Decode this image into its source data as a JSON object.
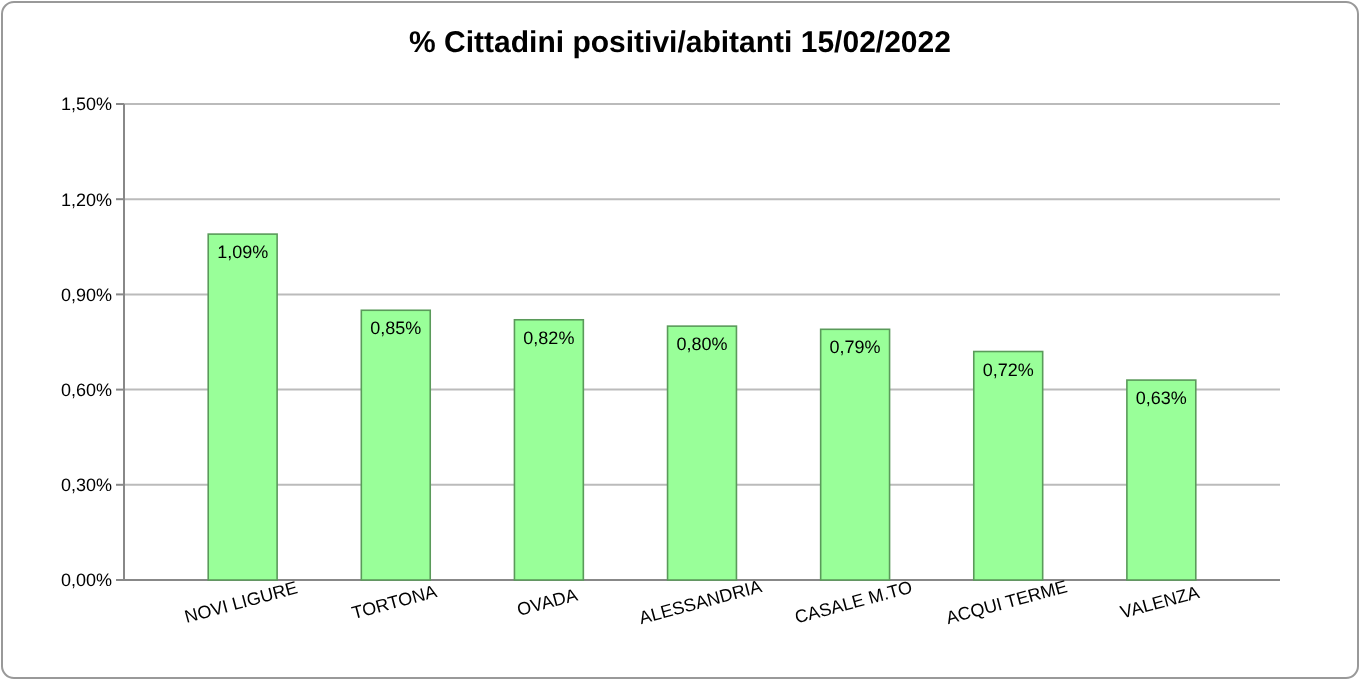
{
  "chart_data": {
    "type": "bar",
    "title": "% Cittadini positivi/abitanti  15/02/2022",
    "categories": [
      "NOVI LIGURE",
      "TORTONA",
      "OVADA",
      "ALESSANDRIA",
      "CASALE M.TO",
      "ACQUI TERME",
      "VALENZA"
    ],
    "values": [
      1.09,
      0.85,
      0.82,
      0.8,
      0.79,
      0.72,
      0.63
    ],
    "value_labels": [
      "1,09%",
      "0,85%",
      "0,82%",
      "0,80%",
      "0,79%",
      "0,72%",
      "0,63%"
    ],
    "color": "#99ff99",
    "ylim": [
      0,
      1.5
    ],
    "yticks": [
      {
        "value": 0,
        "label": "0,00%"
      },
      {
        "value": 0.3,
        "label": "0,30%"
      },
      {
        "value": 0.6,
        "label": "0,60%"
      },
      {
        "value": 0.9,
        "label": "0,90%"
      },
      {
        "value": 1.2,
        "label": "1,20%"
      },
      {
        "value": 1.5,
        "label": "1,50%"
      }
    ],
    "grid": "y"
  }
}
